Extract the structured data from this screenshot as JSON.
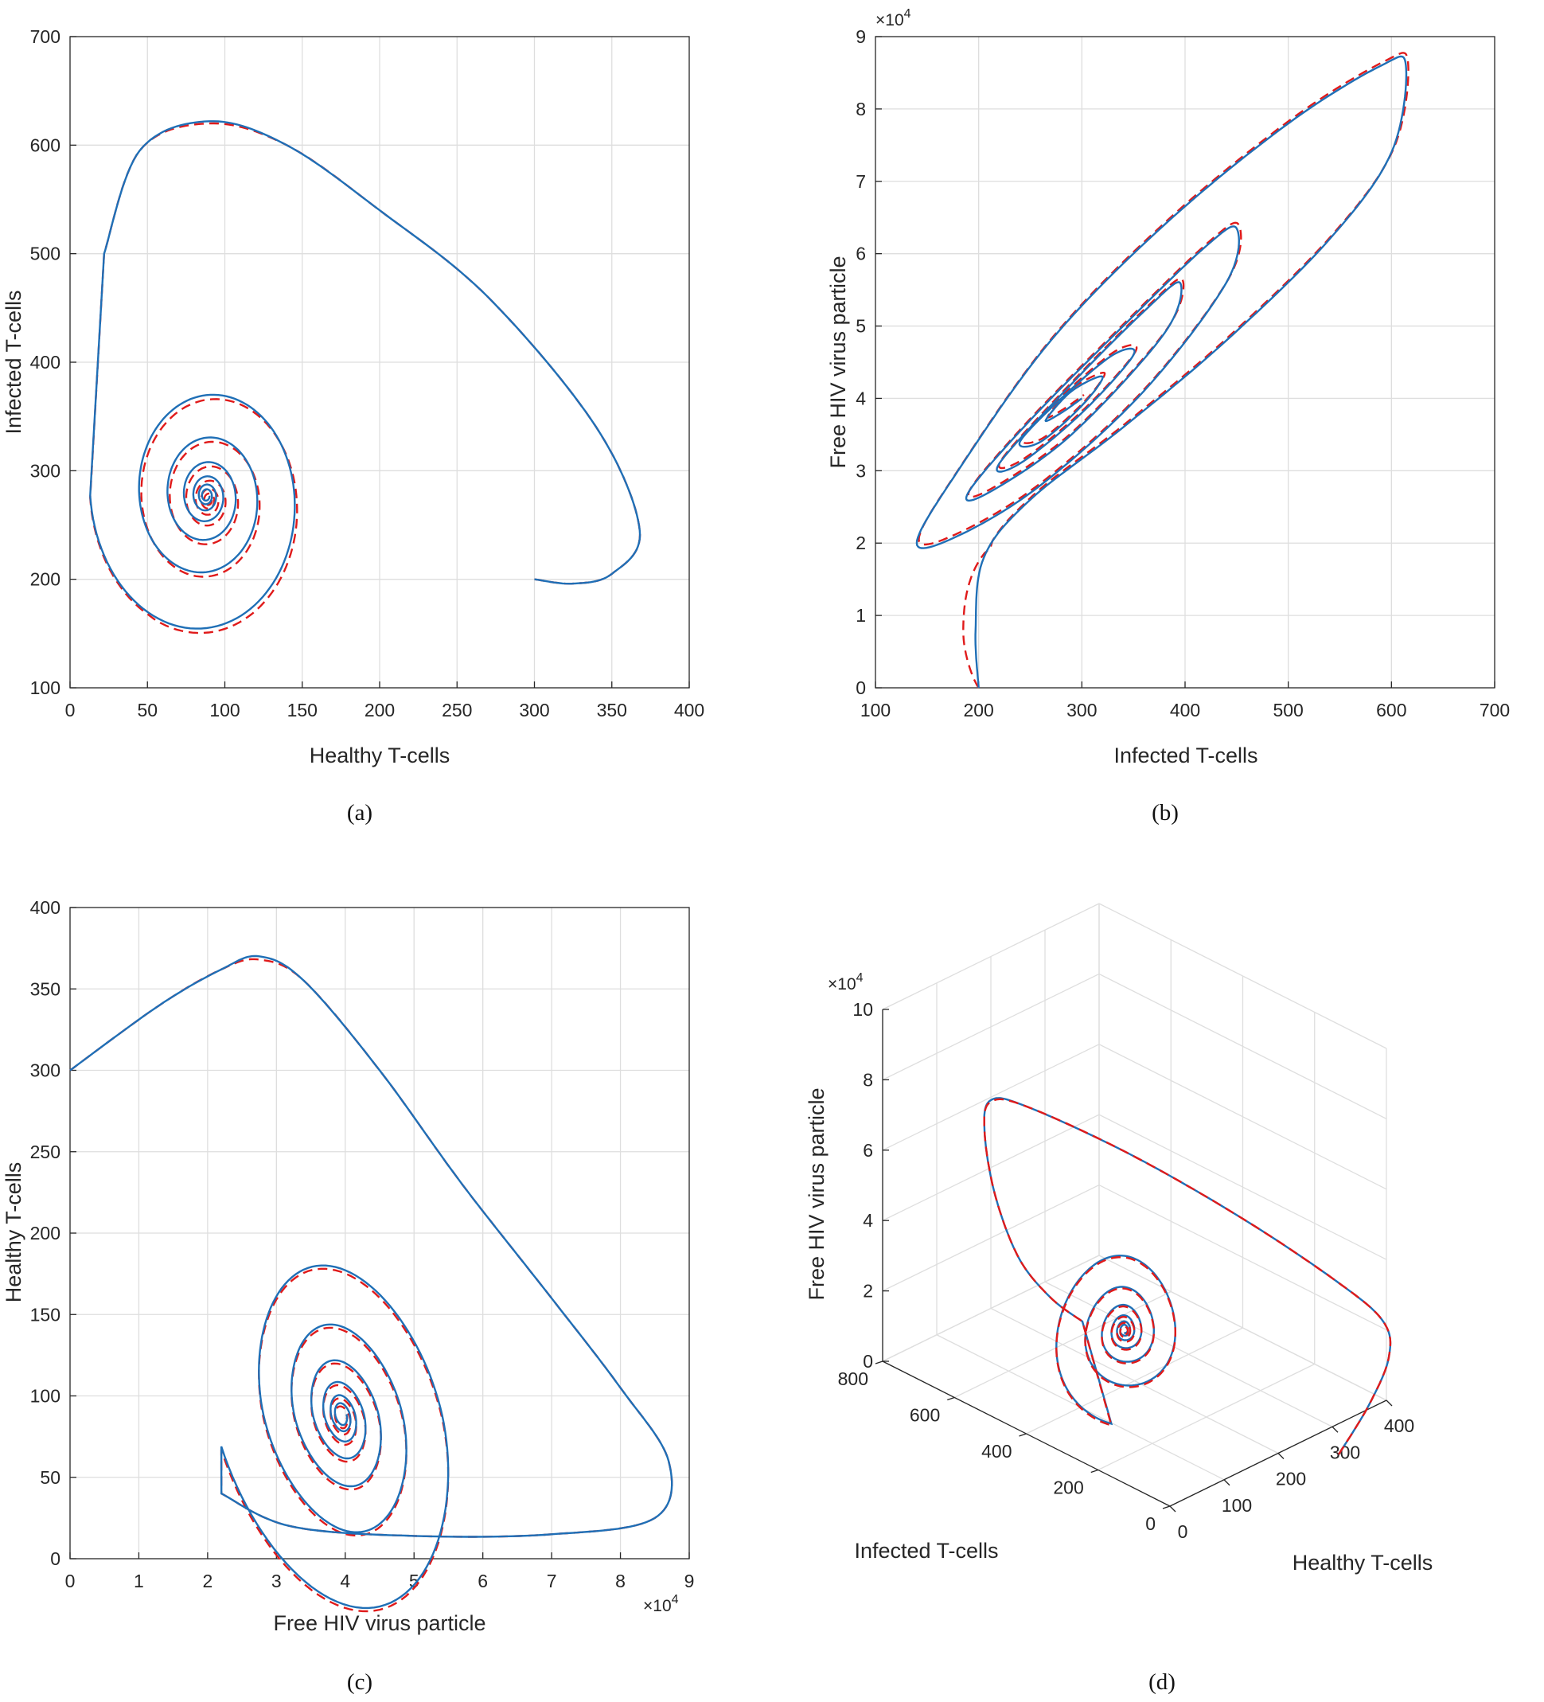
{
  "chart_data": [
    {
      "id": "a",
      "type": "line",
      "caption": "(a)",
      "xlabel": "Healthy T-cells",
      "ylabel": "Infected T-cells",
      "xlim": [
        0,
        400
      ],
      "ylim": [
        100,
        700
      ],
      "xticks": [
        0,
        50,
        100,
        150,
        200,
        250,
        300,
        350,
        400
      ],
      "yticks": [
        100,
        200,
        300,
        400,
        500,
        600,
        700
      ],
      "grid": true,
      "series": [
        {
          "color": "#1f6fb6",
          "style": "solid",
          "start": [
            300,
            200
          ],
          "center": [
            88,
            277
          ],
          "peak": [
            90,
            622
          ],
          "min_y": 138,
          "max_x": 370
        },
        {
          "color": "#e01a1a",
          "style": "dashed",
          "start": [
            300,
            200
          ],
          "center": [
            88,
            275
          ],
          "peak": [
            90,
            620
          ],
          "min_y": 138,
          "max_x": 368
        }
      ]
    },
    {
      "id": "b",
      "type": "line",
      "caption": "(b)",
      "xlabel": "Infected T-cells",
      "ylabel": "Free HIV virus particle",
      "xlim": [
        100,
        700
      ],
      "ylim": [
        0,
        9
      ],
      "y_multiplier": "×10",
      "y_multiplier_exp": "4",
      "xticks": [
        100,
        200,
        300,
        400,
        500,
        600,
        700
      ],
      "yticks": [
        0,
        1,
        2,
        3,
        4,
        5,
        6,
        7,
        8,
        9
      ],
      "grid": true,
      "series": [
        {
          "color": "#1f6fb6",
          "style": "solid",
          "start": [
            200,
            0
          ],
          "center": [
            275,
            3.8
          ],
          "peak": [
            615,
            8.7
          ],
          "min_x": 138
        },
        {
          "color": "#e01a1a",
          "style": "dashed",
          "start": [
            200,
            0
          ],
          "center": [
            275,
            3.85
          ],
          "peak": [
            615,
            8.7
          ],
          "min_x": 138
        }
      ]
    },
    {
      "id": "c",
      "type": "line",
      "caption": "(c)",
      "xlabel": "Free HIV virus particle",
      "ylabel": "Healthy T-cells",
      "xlim": [
        0,
        9
      ],
      "ylim": [
        0,
        400
      ],
      "x_multiplier": "×10",
      "x_multiplier_exp": "4",
      "xticks": [
        0,
        1,
        2,
        3,
        4,
        5,
        6,
        7,
        8,
        9
      ],
      "yticks": [
        0,
        50,
        100,
        150,
        200,
        250,
        300,
        350,
        400
      ],
      "grid": true,
      "series": [
        {
          "color": "#1f6fb6",
          "style": "solid",
          "start": [
            0,
            300
          ],
          "center": [
            3.95,
            88
          ],
          "peak": [
            2.7,
            370
          ],
          "max_x": 8.75,
          "min_y": 13
        },
        {
          "color": "#e01a1a",
          "style": "dashed",
          "start": [
            0,
            300
          ],
          "center": [
            3.95,
            86
          ],
          "peak": [
            2.7,
            369
          ],
          "max_x": 8.72,
          "min_y": 13
        }
      ]
    },
    {
      "id": "d",
      "type": "line",
      "caption": "(d)",
      "xlabel": "Healthy T-cells",
      "ylabel": "Infected T-cells",
      "zlabel": "Free HIV virus particle",
      "xlim": [
        0,
        400
      ],
      "ylim": [
        0,
        800
      ],
      "zlim": [
        0,
        10
      ],
      "z_multiplier": "×10",
      "z_multiplier_exp": "4",
      "xticks": [
        0,
        100,
        200,
        300,
        400
      ],
      "yticks": [
        0,
        200,
        400,
        600,
        800
      ],
      "zticks": [
        0,
        2,
        4,
        6,
        8,
        10
      ],
      "grid": true,
      "series": [
        {
          "color": "#1f6fb6",
          "style": "solid"
        },
        {
          "color": "#e01a1a",
          "style": "dashed"
        }
      ]
    }
  ]
}
